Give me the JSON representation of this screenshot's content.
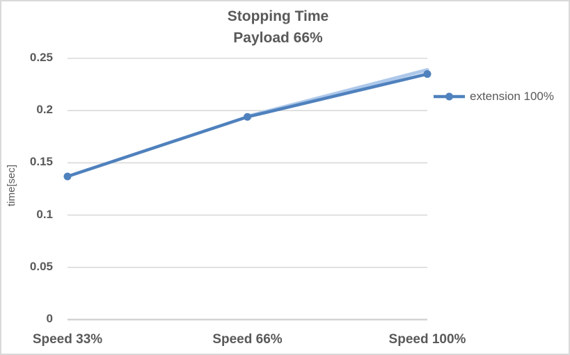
{
  "window": {
    "background_color": "#ffffff",
    "border_color": "#d9d9d9"
  },
  "chart_data": {
    "type": "line",
    "title": "Stopping Time",
    "subtitle": "Payload 66%",
    "categories": [
      "Speed 33%",
      "Speed 66%",
      "Speed 100%"
    ],
    "series": [
      {
        "name": "extension 100%",
        "values": [
          0.137,
          0.194,
          0.235
        ],
        "color": "#4f81bd",
        "marker": "circle",
        "line_width": 4.5,
        "marker_radius": 5.5
      }
    ],
    "faint_overlap_line": {
      "color": "#adc8ea",
      "category_indices": [
        1,
        2
      ],
      "values": [
        0.1945,
        0.239
      ]
    },
    "xlabel": "",
    "ylabel": "time[sec]",
    "ylim": [
      0,
      0.25
    ],
    "ytick_step": 0.05,
    "ytick_labels": [
      "0",
      "0.05",
      "0.1",
      "0.15",
      "0.2",
      "0.25"
    ],
    "grid": true,
    "gridline_color": "#d9d9d9",
    "axis_line_color": "#d3d3d3",
    "text_color": "#595959",
    "legend": {
      "position": "right",
      "entries": [
        "extension 100%"
      ]
    }
  }
}
